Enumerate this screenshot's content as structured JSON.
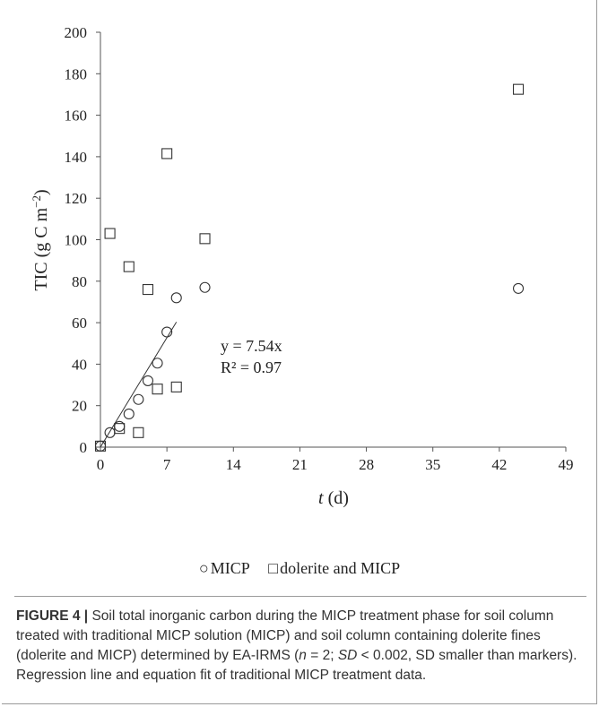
{
  "chart_data": {
    "type": "scatter",
    "xlabel_italic": "t",
    "xlabel_rest": " (d)",
    "ylabel_main": "TIC (g C m",
    "ylabel_sup": "−2",
    "ylabel_close": ")",
    "xlim": [
      0,
      49
    ],
    "ylim": [
      0,
      200
    ],
    "xticks": [
      0,
      7,
      14,
      21,
      28,
      35,
      42,
      49
    ],
    "yticks": [
      0,
      20,
      40,
      60,
      80,
      100,
      120,
      140,
      160,
      180,
      200
    ],
    "xtick_labels": [
      "0",
      "7",
      "14",
      "21",
      "28",
      "35",
      "42",
      "49"
    ],
    "ytick_labels": [
      "0",
      "20",
      "40",
      "60",
      "80",
      "100",
      "120",
      "140",
      "160",
      "180",
      "200"
    ],
    "grid": false,
    "series": [
      {
        "name": "MICP",
        "marker": "circle",
        "points": [
          [
            0,
            0.5
          ],
          [
            1,
            7
          ],
          [
            2,
            10
          ],
          [
            3,
            16
          ],
          [
            4,
            23
          ],
          [
            5,
            32
          ],
          [
            6,
            40.5
          ],
          [
            7,
            55.5
          ],
          [
            8,
            72
          ],
          [
            11,
            77
          ],
          [
            44,
            76.5
          ]
        ]
      },
      {
        "name": "dolerite and MICP",
        "marker": "square",
        "points": [
          [
            0,
            0.5
          ],
          [
            1,
            103
          ],
          [
            2,
            9
          ],
          [
            3,
            87
          ],
          [
            4,
            7
          ],
          [
            5,
            76
          ],
          [
            6,
            28
          ],
          [
            7,
            141.5
          ],
          [
            8,
            29
          ],
          [
            11,
            100.5
          ],
          [
            44,
            172.5
          ]
        ]
      }
    ],
    "trendline": {
      "series": "MICP",
      "x_range": [
        0,
        8
      ],
      "slope": 7.54,
      "equation": "y = 7.54x",
      "r_squared": "R² = 0.97"
    }
  },
  "legend": {
    "circle_symbol": "○",
    "square_symbol": "□",
    "label_1": "MICP",
    "label_2": "dolerite and MICP"
  },
  "caption": {
    "figure_label": "FIGURE 4 |",
    "part1": " Soil total inorganic carbon during the MICP treatment phase for soil column treated with traditional MICP solution (MICP) and soil column containing dolerite fines (dolerite and MICP) determined by EA-IRMS (",
    "n_italic": "n",
    "part2": " = 2; ",
    "sd_italic": "SD",
    "part3": " < 0.002, SD smaller than markers). Regression line and equation fit of traditional MICP treatment data."
  }
}
